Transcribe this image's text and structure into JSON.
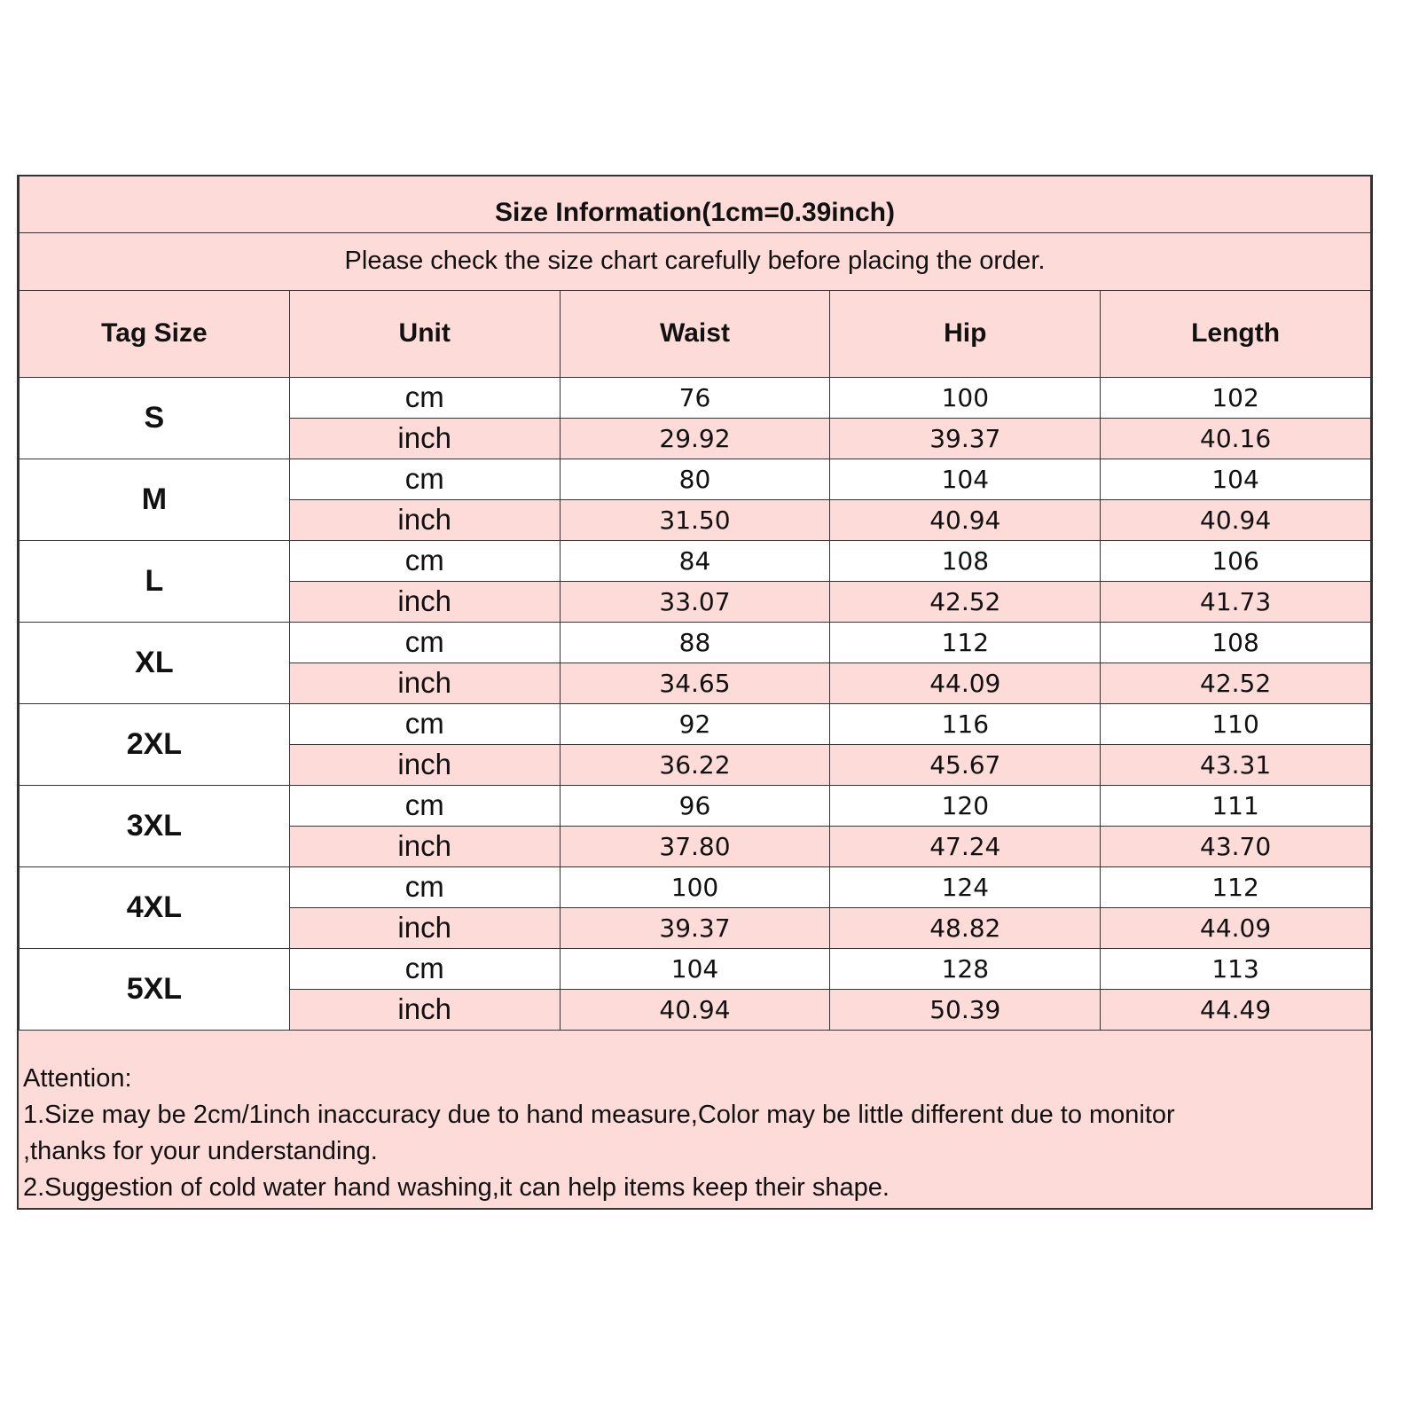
{
  "title": "Size Information(1cm=0.39inch)",
  "subtitle": "Please check the size chart carefully before placing the order.",
  "headers": [
    "Tag Size",
    "Unit",
    "Waist",
    "Hip",
    "Length"
  ],
  "colors": {
    "pink": "#fcdbd9",
    "border": "#333333"
  },
  "rows": [
    {
      "size": "S",
      "cm": {
        "unit": "cm",
        "waist": "76",
        "hip": "100",
        "length": "102"
      },
      "inch": {
        "unit": "inch",
        "waist": "29.92",
        "hip": "39.37",
        "length": "40.16"
      }
    },
    {
      "size": "M",
      "cm": {
        "unit": "cm",
        "waist": "80",
        "hip": "104",
        "length": "104"
      },
      "inch": {
        "unit": "inch",
        "waist": "31.50",
        "hip": "40.94",
        "length": "40.94"
      }
    },
    {
      "size": "L",
      "cm": {
        "unit": "cm",
        "waist": "84",
        "hip": "108",
        "length": "106"
      },
      "inch": {
        "unit": "inch",
        "waist": "33.07",
        "hip": "42.52",
        "length": "41.73"
      }
    },
    {
      "size": "XL",
      "cm": {
        "unit": "cm",
        "waist": "88",
        "hip": "112",
        "length": "108"
      },
      "inch": {
        "unit": "inch",
        "waist": "34.65",
        "hip": "44.09",
        "length": "42.52"
      }
    },
    {
      "size": "2XL",
      "cm": {
        "unit": "cm",
        "waist": "92",
        "hip": "116",
        "length": "110"
      },
      "inch": {
        "unit": "inch",
        "waist": "36.22",
        "hip": "45.67",
        "length": "43.31"
      }
    },
    {
      "size": "3XL",
      "cm": {
        "unit": "cm",
        "waist": "96",
        "hip": "120",
        "length": "111"
      },
      "inch": {
        "unit": "inch",
        "waist": "37.80",
        "hip": "47.24",
        "length": "43.70"
      }
    },
    {
      "size": "4XL",
      "cm": {
        "unit": "cm",
        "waist": "100",
        "hip": "124",
        "length": "112"
      },
      "inch": {
        "unit": "inch",
        "waist": "39.37",
        "hip": "48.82",
        "length": "44.09"
      }
    },
    {
      "size": "5XL",
      "cm": {
        "unit": "cm",
        "waist": "104",
        "hip": "128",
        "length": "113"
      },
      "inch": {
        "unit": "inch",
        "waist": "40.94",
        "hip": "50.39",
        "length": "44.49"
      }
    }
  ],
  "notes": [
    "Attention:",
    "1.Size may be 2cm/1inch inaccuracy due to hand measure,Color may be little different due to monitor",
    ",thanks for your understanding.",
    "2.Suggestion of cold water hand washing,it can help items keep their shape."
  ]
}
